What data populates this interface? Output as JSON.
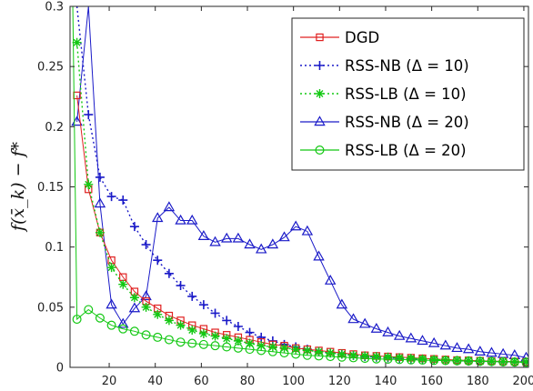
{
  "chart_data": {
    "type": "line",
    "ylabel": "f(x̄_k) − f*",
    "xlabel": "",
    "xlim": [
      3,
      202
    ],
    "ylim": [
      0,
      0.3
    ],
    "xticks": [
      20,
      40,
      60,
      80,
      100,
      120,
      140,
      160,
      180,
      200
    ],
    "xtick_labels": [
      "20",
      "40",
      "60",
      "80",
      "100",
      "120",
      "140",
      "160",
      "180",
      "200"
    ],
    "yticks": [
      0,
      0.05,
      0.1,
      0.15,
      0.2,
      0.25,
      0.3
    ],
    "ytick_labels": [
      "0",
      "0.05",
      "0.1",
      "0.15",
      "0.2",
      "0.25",
      "0.3"
    ],
    "grid": false,
    "legend_position": "top-right",
    "series": [
      {
        "name": "DGD",
        "color": "#e02020",
        "dash": "solid",
        "marker": "square",
        "x": [
          6,
          11,
          16,
          21,
          26,
          31,
          36,
          41,
          46,
          51,
          56,
          61,
          66,
          71,
          76,
          81,
          86,
          91,
          96,
          101,
          106,
          111,
          116,
          121,
          126,
          131,
          136,
          141,
          146,
          151,
          156,
          161,
          166,
          171,
          176,
          181,
          186,
          191,
          196,
          201
        ],
        "y": [
          0.226,
          0.148,
          0.112,
          0.089,
          0.075,
          0.063,
          0.055,
          0.049,
          0.043,
          0.039,
          0.035,
          0.032,
          0.029,
          0.027,
          0.025,
          0.023,
          0.021,
          0.019,
          0.018,
          0.016,
          0.015,
          0.014,
          0.013,
          0.012,
          0.011,
          0.01,
          0.0095,
          0.009,
          0.0085,
          0.008,
          0.0075,
          0.007,
          0.0065,
          0.006,
          0.0058,
          0.0055,
          0.0052,
          0.005,
          0.0048,
          0.0045
        ]
      },
      {
        "name": "RSS-NB (Δ = 10)",
        "color": "#1a1ac8",
        "dash": "dotted",
        "marker": "plus",
        "x": [
          6,
          11,
          16,
          21,
          26,
          31,
          36,
          41,
          46,
          51,
          56,
          61,
          66,
          71,
          76,
          81,
          86,
          91,
          96,
          101,
          106,
          111,
          116,
          121,
          126,
          131,
          136,
          141,
          146,
          151,
          156,
          161,
          166,
          171,
          176,
          181,
          186,
          191,
          196,
          201
        ],
        "y": [
          0.3,
          0.21,
          0.158,
          0.142,
          0.139,
          0.117,
          0.102,
          0.089,
          0.078,
          0.068,
          0.059,
          0.052,
          0.045,
          0.039,
          0.034,
          0.029,
          0.025,
          0.022,
          0.019,
          0.017,
          0.015,
          0.013,
          0.012,
          0.011,
          0.01,
          0.009,
          0.0085,
          0.008,
          0.0075,
          0.007,
          0.0065,
          0.006,
          0.0058,
          0.0055,
          0.0052,
          0.005,
          0.0048,
          0.0046,
          0.0044,
          0.0042
        ]
      },
      {
        "name": "RSS-LB (Δ = 10)",
        "color": "#12c812",
        "dash": "dotted",
        "marker": "star",
        "x": [
          6,
          11,
          16,
          21,
          26,
          31,
          36,
          41,
          46,
          51,
          56,
          61,
          66,
          71,
          76,
          81,
          86,
          91,
          96,
          101,
          106,
          111,
          116,
          121,
          126,
          131,
          136,
          141,
          146,
          151,
          156,
          161,
          166,
          171,
          176,
          181,
          186,
          191,
          196,
          201
        ],
        "y": [
          0.27,
          0.152,
          0.112,
          0.083,
          0.069,
          0.058,
          0.05,
          0.044,
          0.039,
          0.035,
          0.031,
          0.028,
          0.026,
          0.024,
          0.022,
          0.02,
          0.018,
          0.017,
          0.016,
          0.015,
          0.014,
          0.013,
          0.012,
          0.011,
          0.01,
          0.0095,
          0.009,
          0.0085,
          0.008,
          0.0075,
          0.007,
          0.0065,
          0.006,
          0.0058,
          0.0055,
          0.0052,
          0.005,
          0.0048,
          0.0046,
          0.0044
        ]
      },
      {
        "name": "RSS-NB (Δ = 20)",
        "color": "#1a1ac8",
        "dash": "solid",
        "marker": "triangle",
        "x": [
          6,
          11,
          16,
          21,
          26,
          31,
          36,
          41,
          46,
          51,
          56,
          61,
          66,
          71,
          76,
          81,
          86,
          91,
          96,
          101,
          106,
          111,
          116,
          121,
          126,
          131,
          136,
          141,
          146,
          151,
          156,
          161,
          166,
          171,
          176,
          181,
          186,
          191,
          196,
          201
        ],
        "y": [
          0.204,
          0.3,
          0.136,
          0.052,
          0.036,
          0.049,
          0.059,
          0.124,
          0.133,
          0.122,
          0.122,
          0.109,
          0.104,
          0.107,
          0.107,
          0.102,
          0.098,
          0.102,
          0.108,
          0.117,
          0.113,
          0.092,
          0.072,
          0.052,
          0.04,
          0.036,
          0.032,
          0.029,
          0.026,
          0.024,
          0.022,
          0.02,
          0.018,
          0.016,
          0.015,
          0.013,
          0.012,
          0.011,
          0.01,
          0.008
        ]
      },
      {
        "name": "RSS-LB (Δ = 20)",
        "color": "#12c812",
        "dash": "solid",
        "marker": "circle",
        "x": [
          4.2,
          6,
          11,
          16,
          21,
          26,
          31,
          36,
          41,
          46,
          51,
          56,
          61,
          66,
          71,
          76,
          81,
          86,
          91,
          96,
          101,
          106,
          111,
          116,
          121,
          126,
          131,
          136,
          141,
          146,
          151,
          156,
          161,
          166,
          171,
          176,
          181,
          186,
          191,
          196,
          201
        ],
        "y": [
          0.3,
          0.04,
          0.048,
          0.041,
          0.035,
          0.032,
          0.03,
          0.027,
          0.025,
          0.023,
          0.021,
          0.02,
          0.019,
          0.018,
          0.017,
          0.016,
          0.015,
          0.014,
          0.013,
          0.012,
          0.011,
          0.01,
          0.0095,
          0.009,
          0.0085,
          0.008,
          0.0075,
          0.007,
          0.0068,
          0.0065,
          0.0062,
          0.006,
          0.0058,
          0.0056,
          0.0054,
          0.0052,
          0.005,
          0.0048,
          0.0046,
          0.0044,
          0.0042
        ]
      }
    ]
  }
}
